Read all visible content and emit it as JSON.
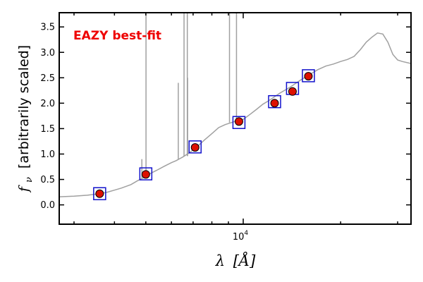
{
  "chart_data": {
    "type": "scatter",
    "title": "",
    "xlabel": "λ [Å]",
    "ylabel": "f_ν [arbitrarily scaled]",
    "ylabel_symbol": "f",
    "ylabel_subscript": "ν",
    "ylabel_rest": "[arbitrarily scaled]",
    "xlabel_symbol": "λ",
    "xlabel_rest": "[Å]",
    "x_scale": "log",
    "xlim": [
      2700,
      33000
    ],
    "ylim": [
      -0.38,
      3.78
    ],
    "x_tick_labels": [
      {
        "value": 10000,
        "base": "10",
        "exp": "4"
      }
    ],
    "y_ticks": [
      0.0,
      0.5,
      1.0,
      1.5,
      2.0,
      2.5,
      3.0,
      3.5
    ],
    "y_tick_labels": [
      "0.0",
      "0.5",
      "1.0",
      "1.5",
      "2.0",
      "2.5",
      "3.0",
      "3.5"
    ],
    "grid": false,
    "annotation": {
      "text": "EAZY best-fit",
      "color": "#ee0000"
    },
    "colors": {
      "template": "#a0a0a0",
      "observed_fill": "#dd1100",
      "observed_edge": "#000000",
      "model_box": "#1111cc"
    },
    "template_series": {
      "x": [
        2700,
        3000,
        3300,
        3600,
        3800,
        4000,
        4200,
        4500,
        4700,
        4900,
        5100,
        5400,
        5700,
        6000,
        6200,
        6500,
        6800,
        7000,
        7300,
        7600,
        8000,
        8400,
        8800,
        9200,
        9600,
        10000,
        10500,
        11000,
        11500,
        12000,
        13000,
        14000,
        15000,
        16000,
        17000,
        18000,
        19000,
        20000,
        21000,
        22000,
        23000,
        24000,
        25000,
        26000,
        27000,
        28000,
        29000,
        30000,
        31000,
        33000
      ],
      "y": [
        0.16,
        0.17,
        0.19,
        0.22,
        0.25,
        0.29,
        0.33,
        0.4,
        0.47,
        0.53,
        0.6,
        0.68,
        0.76,
        0.83,
        0.87,
        0.94,
        1.02,
        1.08,
        1.18,
        1.28,
        1.4,
        1.52,
        1.58,
        1.62,
        1.66,
        1.68,
        1.78,
        1.88,
        1.98,
        2.05,
        2.2,
        2.32,
        2.45,
        2.56,
        2.66,
        2.73,
        2.77,
        2.82,
        2.86,
        2.92,
        3.05,
        3.2,
        3.3,
        3.38,
        3.36,
        3.2,
        2.96,
        2.85,
        2.82,
        2.78
      ]
    },
    "emission_lines": [
      {
        "x": 5007,
        "base": 0.55,
        "peak": 3.78
      },
      {
        "x": 4861,
        "base": 0.53,
        "peak": 0.9
      },
      {
        "x": 6300,
        "base": 0.9,
        "peak": 2.4
      },
      {
        "x": 6563,
        "base": 0.95,
        "peak": 3.78
      },
      {
        "x": 6717,
        "base": 0.96,
        "peak": 3.78
      },
      {
        "x": 6731,
        "base": 0.96,
        "peak": 2.5
      },
      {
        "x": 9069,
        "base": 1.62,
        "peak": 3.78
      },
      {
        "x": 9532,
        "base": 1.64,
        "peak": 3.78
      }
    ],
    "observed_points": {
      "name": "",
      "x": [
        3600,
        5000,
        7100,
        9700,
        12500,
        14200,
        15900
      ],
      "y": [
        0.22,
        0.6,
        1.13,
        1.64,
        2.0,
        2.23,
        2.53
      ]
    },
    "model_points": {
      "name": "",
      "x": [
        3600,
        5000,
        7100,
        9700,
        12500,
        14200,
        15900
      ],
      "y": [
        0.22,
        0.61,
        1.14,
        1.62,
        2.03,
        2.29,
        2.54
      ]
    }
  }
}
